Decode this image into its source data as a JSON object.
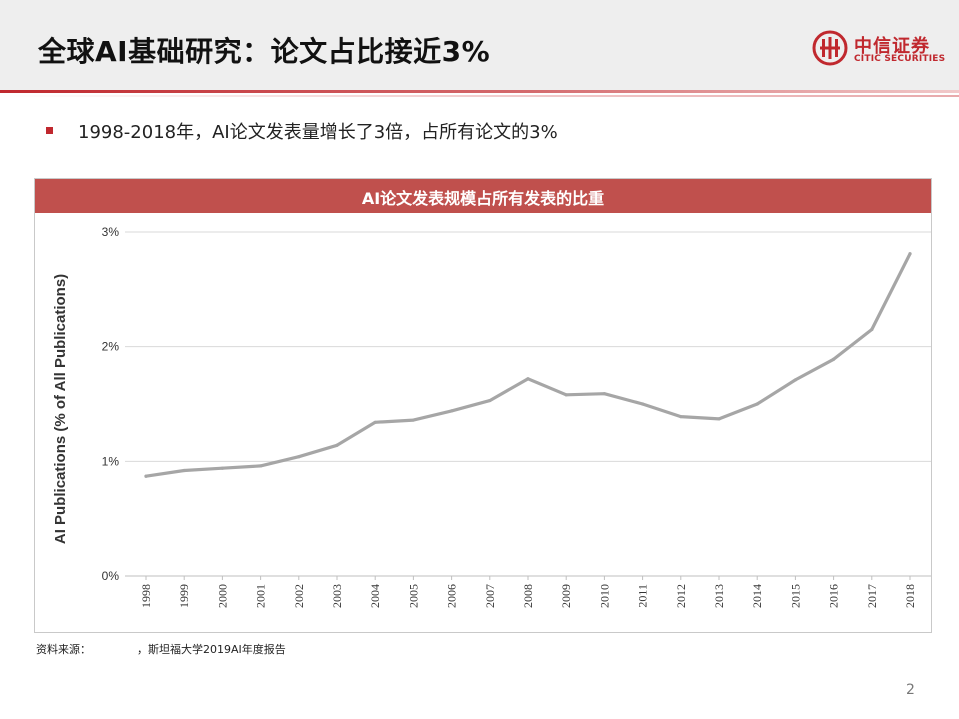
{
  "header": {
    "title": "全球AI基础研究：论文占比接近3%",
    "logo_cn": "中信证券",
    "logo_en": "CITIC SECURITIES"
  },
  "bullet": "1998-2018年，AI论文发表量增长了3倍，占所有论文的3%",
  "chart_banner": "AI论文发表规模占所有发表的比重",
  "source": {
    "label": "资料来源：",
    "text": "，斯坦福大学2019AI年度报告"
  },
  "page_number": "2",
  "colors": {
    "brand": "#c0282e",
    "chart_header": "#c0504d",
    "line": "#a6a6a6"
  },
  "chart_data": {
    "type": "line",
    "title": "AI论文发表规模占所有发表的比重",
    "ylabel": "AI Publications (% of All Publications)",
    "xlabel": "",
    "categories": [
      "1998",
      "1999",
      "2000",
      "2001",
      "2002",
      "2003",
      "2004",
      "2005",
      "2006",
      "2007",
      "2008",
      "2009",
      "2010",
      "2011",
      "2012",
      "2013",
      "2014",
      "2015",
      "2016",
      "2017",
      "2018"
    ],
    "values": [
      0.87,
      0.92,
      0.94,
      0.96,
      1.04,
      1.14,
      1.34,
      1.36,
      1.44,
      1.53,
      1.72,
      1.58,
      1.59,
      1.5,
      1.39,
      1.37,
      1.5,
      1.71,
      1.89,
      2.15,
      2.81
    ],
    "yticks": [
      0,
      1,
      2,
      3
    ],
    "ytick_labels": [
      "0%",
      "1%",
      "2%",
      "3%"
    ],
    "ylim": [
      0,
      3
    ],
    "grid": true,
    "legend": "none"
  }
}
